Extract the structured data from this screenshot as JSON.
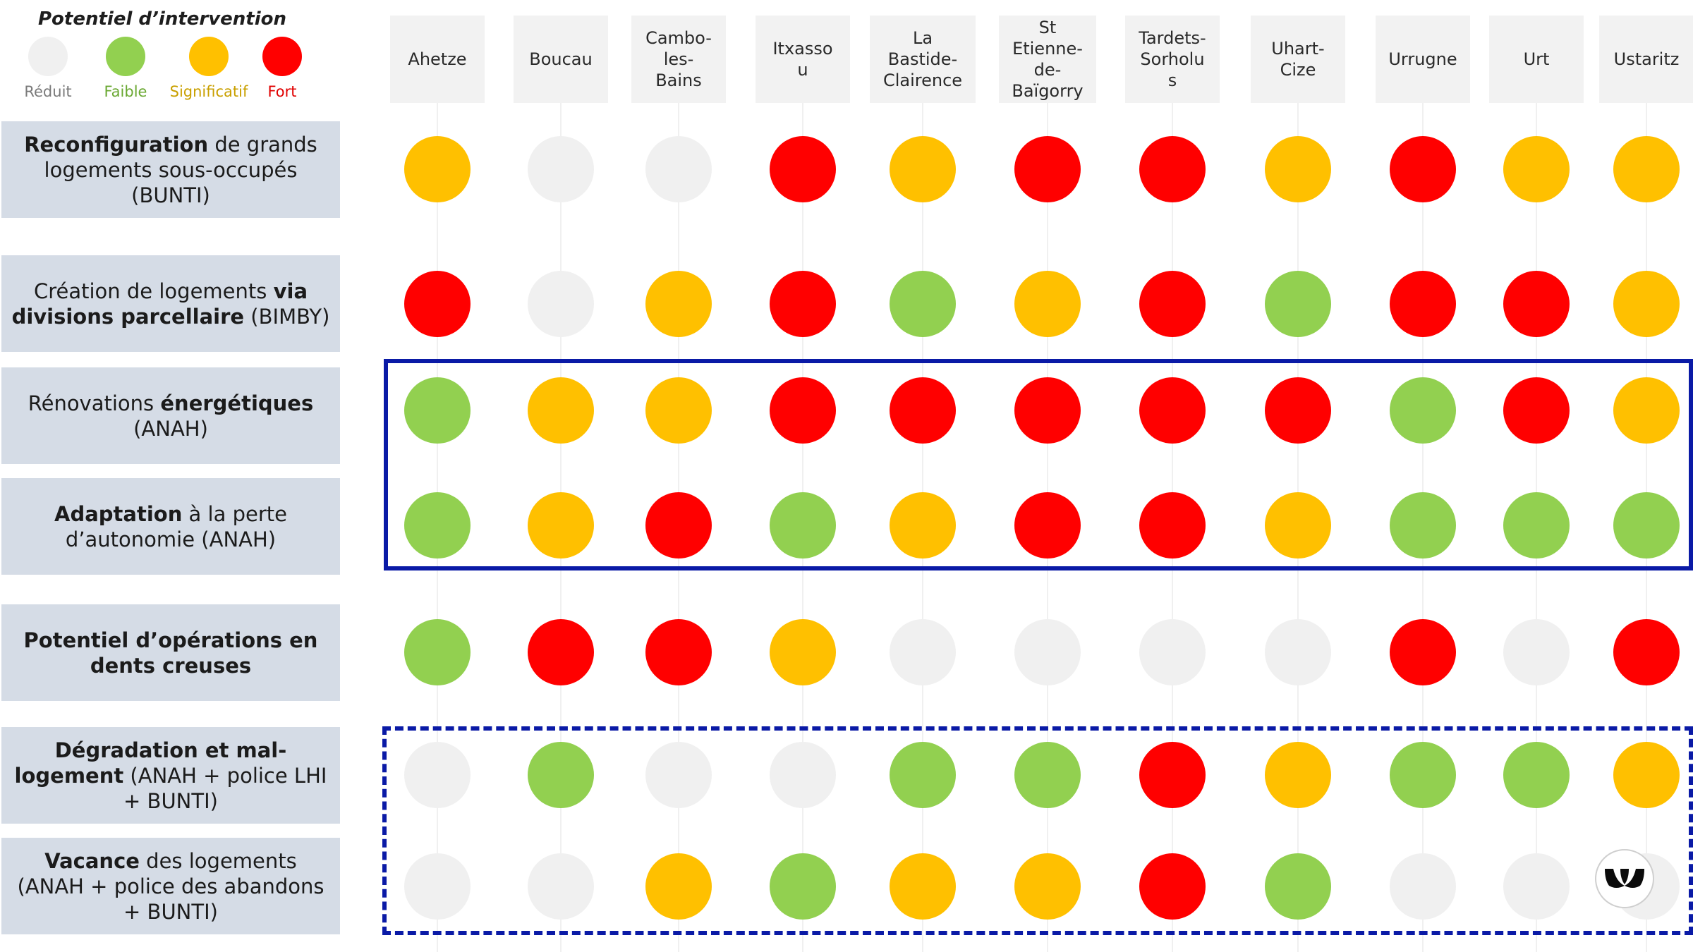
{
  "legend": {
    "title": "Potentiel d’intervention",
    "items": [
      {
        "label": "Réduit",
        "color": "#f0f0f0",
        "text_color": "#7a7a7a"
      },
      {
        "label": "Faible",
        "color": "#92d050",
        "text_color": "#6aa832"
      },
      {
        "label": "Significatif",
        "color": "#ffc000",
        "text_color": "#c9a000"
      },
      {
        "label": "Fort",
        "color": "#ff0000",
        "text_color": "#e00000"
      }
    ]
  },
  "chart_data": {
    "type": "table",
    "levels": [
      "Réduit",
      "Faible",
      "Significatif",
      "Fort"
    ],
    "level_colors": {
      "Réduit": "#f0f0f0",
      "Faible": "#92d050",
      "Significatif": "#ffc000",
      "Fort": "#ff0000"
    },
    "columns": [
      "Ahetze",
      "Boucau",
      "Cambo-\nles-\nBains",
      "Itxasso\nu",
      "La\nBastide-\nClairence",
      "St\nEtienne-\nde-\nBaïgorry",
      "Tardets-\nSorholu\ns",
      "Uhart-\nCize",
      "Urrugne",
      "Urt",
      "Ustaritz"
    ],
    "rows": [
      {
        "label_parts": [
          {
            "text": "Reconfiguration",
            "bold": true
          },
          {
            "text": " de grands logements sous-occupés (BUNTI)",
            "bold": false
          }
        ],
        "values": [
          "Significatif",
          "Réduit",
          "Réduit",
          "Fort",
          "Significatif",
          "Fort",
          "Fort",
          "Significatif",
          "Fort",
          "Significatif",
          "Significatif"
        ]
      },
      {
        "label_parts": [
          {
            "text": "Création de logements ",
            "bold": false
          },
          {
            "text": "via divisions parcellaire",
            "bold": true
          },
          {
            "text": " (BIMBY)",
            "bold": false
          }
        ],
        "values": [
          "Fort",
          "Réduit",
          "Significatif",
          "Fort",
          "Faible",
          "Significatif",
          "Fort",
          "Faible",
          "Fort",
          "Fort",
          "Significatif"
        ]
      },
      {
        "label_parts": [
          {
            "text": "Rénovations ",
            "bold": false
          },
          {
            "text": "énergétiques",
            "bold": true
          },
          {
            "text": " (ANAH)",
            "bold": false
          }
        ],
        "values": [
          "Faible",
          "Significatif",
          "Significatif",
          "Fort",
          "Fort",
          "Fort",
          "Fort",
          "Fort",
          "Faible",
          "Fort",
          "Significatif"
        ]
      },
      {
        "label_parts": [
          {
            "text": "Adaptation",
            "bold": true
          },
          {
            "text": " à la perte d’autonomie (ANAH)",
            "bold": false
          }
        ],
        "values": [
          "Faible",
          "Significatif",
          "Fort",
          "Faible",
          "Significatif",
          "Fort",
          "Fort",
          "Significatif",
          "Faible",
          "Faible",
          "Faible"
        ]
      },
      {
        "label_parts": [
          {
            "text": "Potentiel d’opérations en dents creuses",
            "bold": true
          }
        ],
        "values": [
          "Faible",
          "Fort",
          "Fort",
          "Significatif",
          "Réduit",
          "Réduit",
          "Réduit",
          "Réduit",
          "Fort",
          "Réduit",
          "Fort"
        ]
      },
      {
        "label_parts": [
          {
            "text": "Dégradation et mal-logement",
            "bold": true
          },
          {
            "text": " (ANAH + police LHI + BUNTI)",
            "bold": false
          }
        ],
        "values": [
          "Réduit",
          "Faible",
          "Réduit",
          "Réduit",
          "Faible",
          "Faible",
          "Fort",
          "Significatif",
          "Faible",
          "Faible",
          "Significatif"
        ]
      },
      {
        "label_parts": [
          {
            "text": "Vacance",
            "bold": true
          },
          {
            "text": " des logements (ANAH + police des abandons + BUNTI)",
            "bold": false
          }
        ],
        "values": [
          "Réduit",
          "Réduit",
          "Significatif",
          "Faible",
          "Significatif",
          "Significatif",
          "Fort",
          "Faible",
          "Réduit",
          "Réduit",
          "Réduit"
        ]
      }
    ],
    "highlight_groups": [
      {
        "rows": [
          2,
          3
        ],
        "style": "solid",
        "color": "#0a1aa6"
      },
      {
        "rows": [
          5,
          6
        ],
        "style": "dashed",
        "color": "#0a1aa6"
      }
    ]
  },
  "logo": {
    "icon": "brand-logo-icon"
  }
}
